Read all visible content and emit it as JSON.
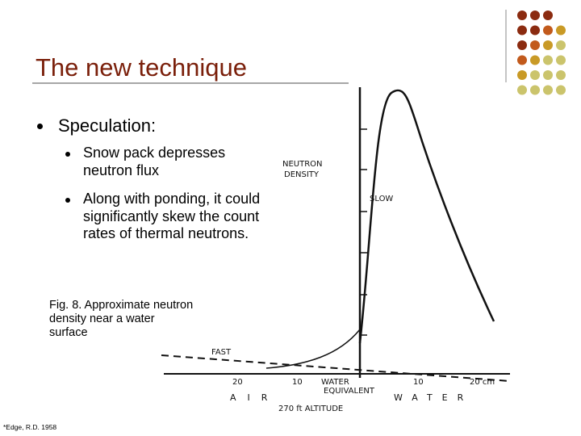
{
  "title": "The new technique",
  "bullets": [
    {
      "text": "Speculation:",
      "sub": [
        "Snow pack depresses neutron flux",
        "Along with ponding, it could significantly skew the count rates of thermal neutrons."
      ]
    }
  ],
  "caption": "Fig. 8. Approximate neutron density near a water surface",
  "figure": {
    "y_label": [
      "NEUTRON",
      "DENSITY"
    ],
    "curve_labels": [
      "SLOW",
      "FAST"
    ],
    "x_ticks": [
      "20",
      "10",
      "10",
      "20 cm"
    ],
    "x_labels": [
      "AIR",
      [
        "WATER",
        "EQUIVALENT"
      ],
      "WATER"
    ],
    "altitude": "270 ft ALTITUDE"
  },
  "citation": "*Edge, R.D. 1958"
}
